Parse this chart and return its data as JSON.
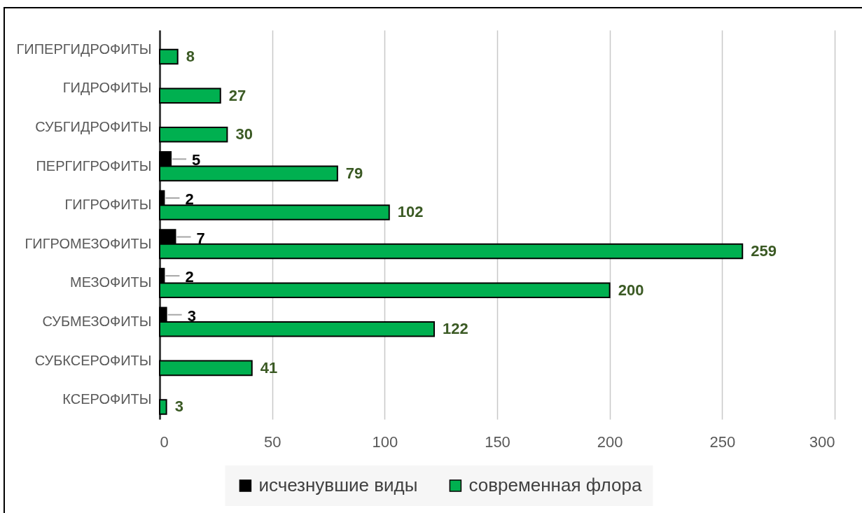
{
  "chart_data": {
    "type": "bar",
    "orientation": "horizontal",
    "categories": [
      "ГИПЕРГИДРОФИТЫ",
      "ГИДРОФИТЫ",
      "СУБГИДРОФИТЫ",
      "ПЕРГИГРОФИТЫ",
      "ГИГРОФИТЫ",
      "ГИГРОМЕЗОФИТЫ",
      "МЕЗОФИТЫ",
      "СУБМЕЗОФИТЫ",
      "СУБКСЕРОФИТЫ",
      "КСЕРОФИТЫ"
    ],
    "series": [
      {
        "name": "исчезнувшие виды",
        "color": "#000000",
        "values": [
          null,
          null,
          null,
          5,
          2,
          7,
          2,
          3,
          null,
          null
        ]
      },
      {
        "name": "современная флора",
        "color": "#00b050",
        "values": [
          8,
          27,
          30,
          79,
          102,
          259,
          200,
          122,
          41,
          3
        ]
      }
    ],
    "xlim": [
      0,
      300
    ],
    "xticks": [
      0,
      50,
      100,
      150,
      200,
      250,
      300
    ],
    "grid": "x",
    "legend": "bottom",
    "data_labels": true
  }
}
